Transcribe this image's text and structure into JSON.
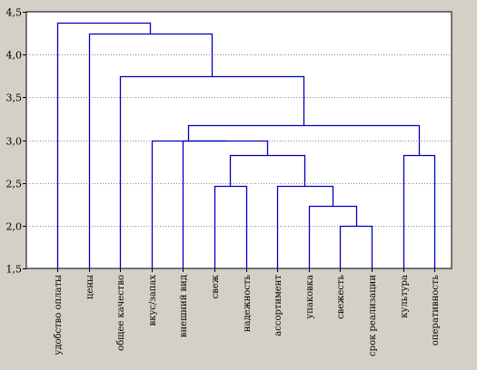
{
  "chart_data": {
    "type": "dendrogram",
    "title": "",
    "xlabel": "",
    "ylabel": "",
    "ylim": [
      1.5,
      4.5
    ],
    "yticks": [
      "1,5",
      "2,0",
      "2,5",
      "3,0",
      "3,5",
      "4,0",
      "4,5"
    ],
    "grid": "horizontal dotted",
    "line_color": "#0000c0",
    "background_color": "#ffffff",
    "frame_color": "#d4d0c8",
    "leaves": [
      "удобство оплаты",
      "цены",
      "общее качество",
      "вкус/запах",
      "внешний вид",
      "свеж",
      "надежность",
      "ассортимент",
      "упаковка",
      "свежесть",
      "срок реализации",
      "культура",
      "оперативность"
    ],
    "merges": [
      {
        "a": "L9",
        "b": "L10",
        "height": 2.0
      },
      {
        "a": "L8",
        "b": "M0",
        "height": 2.23
      },
      {
        "a": "L7",
        "b": "M1",
        "height": 2.46
      },
      {
        "a": "L5",
        "b": "L6",
        "height": 2.46
      },
      {
        "a": "M3",
        "b": "M2",
        "height": 2.82
      },
      {
        "a": "L11",
        "b": "L12",
        "height": 2.82
      },
      {
        "a": "L4",
        "b": "M4",
        "height": 3.0
      },
      {
        "a": "L3",
        "b": "M6",
        "height": 3.0
      },
      {
        "a": "M7",
        "b": "M5",
        "height": 3.17
      },
      {
        "a": "L2",
        "b": "M8",
        "height": 3.75
      },
      {
        "a": "L1",
        "b": "M9",
        "height": 4.25
      },
      {
        "a": "L0",
        "b": "M10",
        "height": 4.37
      }
    ]
  }
}
